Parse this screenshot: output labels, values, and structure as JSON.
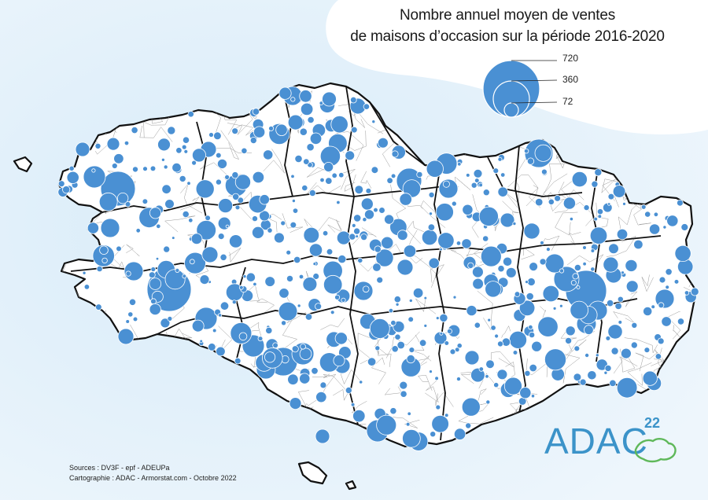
{
  "title": {
    "line1": "Nombre annuel moyen de ventes",
    "line2": "de maisons d’occasion sur la période 2016-2020"
  },
  "legend": {
    "values": [
      "720",
      "360",
      "72"
    ]
  },
  "sources": {
    "line1": "Sources : DV3F - epf - ADEUPa",
    "line2": "Cartographie : ADAC - Armorstat.com - Octobre 2022"
  },
  "logo": {
    "text": "ADAC",
    "sup": "22"
  },
  "colors": {
    "sea": "#e4f1fa",
    "land": "#ffffff",
    "bubble": "#4a90d3",
    "bubble_stroke": "#ffffff",
    "border": "#111111",
    "commune": "#9a9a9a",
    "logo": "#3b93c9"
  }
}
